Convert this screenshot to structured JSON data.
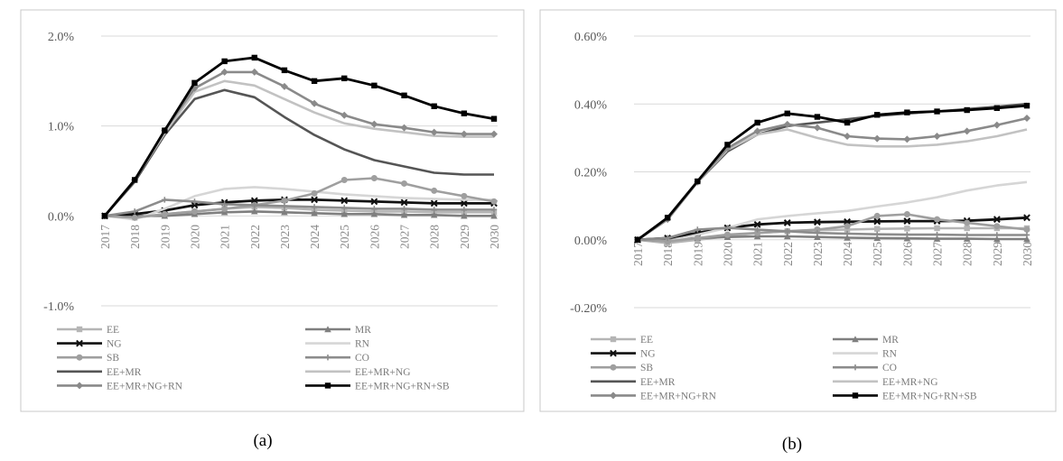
{
  "panel_labels": [
    "(a)",
    "(b)"
  ],
  "chart_data": [
    {
      "type": "line",
      "categories": [
        "2017",
        "2018",
        "2019",
        "2020",
        "2021",
        "2022",
        "2023",
        "2024",
        "2025",
        "2026",
        "2027",
        "2028",
        "2029",
        "2030"
      ],
      "ylim": [
        -1.0,
        2.0
      ],
      "yticks": [
        -1.0,
        0.0,
        1.0,
        2.0
      ],
      "ytick_labels": [
        "-1.0%",
        "0.0%",
        "1.0%",
        "2.0%"
      ],
      "grid": true,
      "legend": "bottom",
      "series": [
        {
          "name": "EE",
          "color": "#b5b5b5",
          "marker": "square",
          "values": [
            0.0,
            -0.02,
            0.02,
            0.05,
            0.08,
            0.1,
            0.09,
            0.07,
            0.06,
            0.05,
            0.05,
            0.04,
            0.04,
            0.04
          ]
        },
        {
          "name": "MR",
          "color": "#7f7f7f",
          "marker": "triangle",
          "values": [
            0.0,
            0.0,
            0.0,
            0.02,
            0.04,
            0.05,
            0.04,
            0.03,
            0.02,
            0.02,
            0.01,
            0.01,
            0.0,
            0.0
          ]
        },
        {
          "name": "NG",
          "color": "#111111",
          "marker": "x",
          "values": [
            0.0,
            0.02,
            0.06,
            0.12,
            0.15,
            0.17,
            0.18,
            0.18,
            0.17,
            0.16,
            0.15,
            0.14,
            0.14,
            0.14
          ]
        },
        {
          "name": "RN",
          "color": "#d6d6d6",
          "marker": "none",
          "values": [
            0.0,
            -0.04,
            0.08,
            0.22,
            0.3,
            0.32,
            0.3,
            0.27,
            0.24,
            0.22,
            0.2,
            0.19,
            0.18,
            0.18
          ]
        },
        {
          "name": "SB",
          "color": "#9f9f9f",
          "marker": "circle",
          "values": [
            0.0,
            -0.02,
            0.02,
            0.05,
            0.08,
            0.12,
            0.17,
            0.25,
            0.4,
            0.42,
            0.36,
            0.28,
            0.22,
            0.16
          ]
        },
        {
          "name": "CO",
          "color": "#8c8c8c",
          "marker": "plus",
          "values": [
            0.0,
            0.05,
            0.18,
            0.16,
            0.13,
            0.12,
            0.11,
            0.1,
            0.09,
            0.08,
            0.08,
            0.07,
            0.07,
            0.07
          ]
        },
        {
          "name": "EE+MR",
          "color": "#555555",
          "marker": "none",
          "values": [
            0.0,
            0.38,
            0.9,
            1.3,
            1.4,
            1.32,
            1.1,
            0.9,
            0.74,
            0.62,
            0.55,
            0.48,
            0.46,
            0.46
          ]
        },
        {
          "name": "EE+MR+NG",
          "color": "#c2c2c2",
          "marker": "none",
          "values": [
            0.0,
            0.4,
            0.92,
            1.38,
            1.5,
            1.45,
            1.3,
            1.15,
            1.03,
            0.97,
            0.93,
            0.89,
            0.88,
            0.88
          ]
        },
        {
          "name": "EE+MR+NG+RN",
          "color": "#8a8a8a",
          "marker": "diamond",
          "values": [
            0.0,
            0.4,
            0.95,
            1.42,
            1.6,
            1.6,
            1.44,
            1.25,
            1.12,
            1.02,
            0.98,
            0.93,
            0.91,
            0.91
          ]
        },
        {
          "name": "EE+MR+NG+RN+SB",
          "color": "#000000",
          "marker": "square",
          "values": [
            0.0,
            0.4,
            0.95,
            1.48,
            1.72,
            1.76,
            1.62,
            1.5,
            1.53,
            1.45,
            1.34,
            1.22,
            1.14,
            1.08
          ]
        }
      ]
    },
    {
      "type": "line",
      "categories": [
        "2017",
        "2018",
        "2019",
        "2020",
        "2021",
        "2022",
        "2023",
        "2024",
        "2025",
        "2026",
        "2027",
        "2028",
        "2029",
        "2030"
      ],
      "ylim": [
        -0.2,
        0.6
      ],
      "yticks": [
        -0.2,
        0.0,
        0.2,
        0.4,
        0.6
      ],
      "ytick_labels": [
        "-0.20%",
        "0.00%",
        "0.20%",
        "0.40%",
        "0.60%"
      ],
      "grid": true,
      "legend": "bottom",
      "series": [
        {
          "name": "EE",
          "color": "#b5b5b5",
          "marker": "square",
          "values": [
            0.0,
            -0.01,
            0.0,
            0.01,
            0.02,
            0.025,
            0.028,
            0.03,
            0.032,
            0.033,
            0.034,
            0.034,
            0.034,
            0.034
          ]
        },
        {
          "name": "MR",
          "color": "#7f7f7f",
          "marker": "triangle",
          "values": [
            0.0,
            0.0,
            0.005,
            0.008,
            0.01,
            0.01,
            0.008,
            0.006,
            0.005,
            0.004,
            0.003,
            0.003,
            0.002,
            0.002
          ]
        },
        {
          "name": "NG",
          "color": "#111111",
          "marker": "x",
          "values": [
            0.0,
            0.005,
            0.02,
            0.035,
            0.045,
            0.05,
            0.052,
            0.053,
            0.054,
            0.055,
            0.055,
            0.056,
            0.06,
            0.065
          ]
        },
        {
          "name": "RN",
          "color": "#d6d6d6",
          "marker": "none",
          "values": [
            0.0,
            -0.005,
            0.015,
            0.035,
            0.06,
            0.07,
            0.078,
            0.085,
            0.098,
            0.11,
            0.125,
            0.145,
            0.16,
            0.17
          ]
        },
        {
          "name": "SB",
          "color": "#9f9f9f",
          "marker": "circle",
          "values": [
            0.0,
            -0.005,
            0.005,
            0.015,
            0.02,
            0.025,
            0.03,
            0.04,
            0.07,
            0.075,
            0.06,
            0.05,
            0.04,
            0.03
          ]
        },
        {
          "name": "CO",
          "color": "#8c8c8c",
          "marker": "plus",
          "values": [
            0.0,
            0.005,
            0.03,
            0.035,
            0.03,
            0.025,
            0.02,
            0.018,
            0.016,
            0.015,
            0.015,
            0.014,
            0.014,
            0.014
          ]
        },
        {
          "name": "EE+MR",
          "color": "#555555",
          "marker": "none",
          "values": [
            0.0,
            0.06,
            0.17,
            0.26,
            0.31,
            0.335,
            0.345,
            0.355,
            0.365,
            0.372,
            0.378,
            0.385,
            0.392,
            0.4
          ]
        },
        {
          "name": "EE+MR+NG",
          "color": "#c2c2c2",
          "marker": "none",
          "values": [
            0.0,
            0.06,
            0.17,
            0.265,
            0.31,
            0.325,
            0.3,
            0.28,
            0.275,
            0.275,
            0.28,
            0.29,
            0.305,
            0.325
          ]
        },
        {
          "name": "EE+MR+NG+RN",
          "color": "#8a8a8a",
          "marker": "diamond",
          "values": [
            0.0,
            0.06,
            0.17,
            0.27,
            0.32,
            0.34,
            0.33,
            0.305,
            0.298,
            0.296,
            0.305,
            0.32,
            0.338,
            0.358
          ]
        },
        {
          "name": "EE+MR+NG+RN+SB",
          "color": "#000000",
          "marker": "square",
          "values": [
            0.0,
            0.065,
            0.172,
            0.28,
            0.345,
            0.372,
            0.362,
            0.345,
            0.368,
            0.375,
            0.378,
            0.382,
            0.388,
            0.395
          ]
        }
      ]
    }
  ]
}
